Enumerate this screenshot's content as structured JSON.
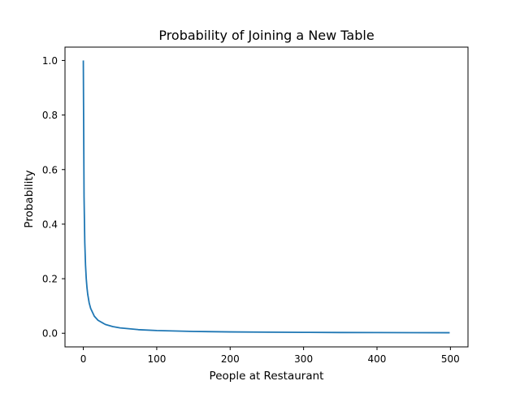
{
  "chart_data": {
    "type": "line",
    "title": "Probability of Joining a New Table",
    "xlabel": "People at Restaurant",
    "ylabel": "Probability",
    "xlim": [
      -24.95,
      523.95
    ],
    "ylim": [
      -0.04995,
      1.04895
    ],
    "xticks": [
      0,
      100,
      200,
      300,
      400,
      500
    ],
    "xtick_labels": [
      "0",
      "100",
      "200",
      "300",
      "400",
      "500"
    ],
    "yticks": [
      0.0,
      0.2,
      0.4,
      0.6,
      0.8,
      1.0
    ],
    "ytick_labels": [
      "0.0",
      "0.2",
      "0.4",
      "0.6",
      "0.8",
      "1.0"
    ],
    "grid": false,
    "series": [
      {
        "color": "#1f77b4",
        "x": [
          0,
          1,
          2,
          3,
          4,
          5,
          6,
          8,
          10,
          15,
          20,
          30,
          40,
          50,
          75,
          100,
          150,
          200,
          250,
          300,
          350,
          400,
          450,
          499
        ],
        "y": [
          1.0,
          0.5,
          0.333,
          0.25,
          0.2,
          0.167,
          0.143,
          0.111,
          0.091,
          0.0625,
          0.0476,
          0.0323,
          0.0244,
          0.0196,
          0.0132,
          0.0099,
          0.0066,
          0.005,
          0.004,
          0.0033,
          0.0028,
          0.0025,
          0.0022,
          0.002
        ]
      }
    ]
  }
}
